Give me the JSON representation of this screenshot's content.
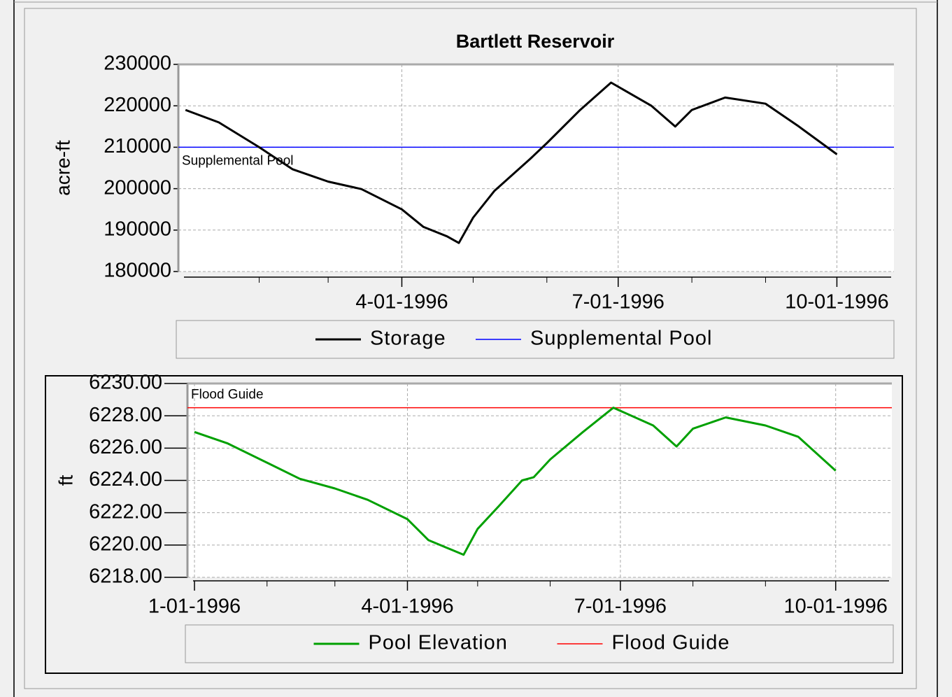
{
  "chart_data": [
    {
      "type": "line",
      "title": "Bartlett Reservoir",
      "ylabel": "acre-ft",
      "x": [
        "1996-01-01",
        "1996-01-15",
        "1996-02-01",
        "1996-02-15",
        "1996-03-01",
        "1996-03-15",
        "1996-04-01",
        "1996-04-10",
        "1996-04-20",
        "1996-04-25",
        "1996-05-01",
        "1996-05-10",
        "1996-05-25",
        "1996-06-01",
        "1996-06-15",
        "1996-06-28",
        "1996-07-15",
        "1996-07-25",
        "1996-08-01",
        "1996-08-15",
        "1996-09-01",
        "1996-09-15",
        "1996-10-01"
      ],
      "series": [
        {
          "name": "Storage",
          "color": "#000000",
          "values": [
            219000,
            216000,
            210000,
            204700,
            201700,
            199900,
            195000,
            190800,
            188500,
            186900,
            193000,
            199500,
            207200,
            211000,
            219000,
            225600,
            220000,
            215000,
            219000,
            222000,
            220500,
            215000,
            208300
          ]
        }
      ],
      "reference_lines": [
        {
          "name": "Supplemental Pool",
          "value": 210000,
          "color": "#0000ff"
        }
      ],
      "xlim": [
        "1995-12-29",
        "1996-10-25"
      ],
      "xticks": [
        {
          "value": "1996-04-01",
          "label": "4-01-1996"
        },
        {
          "value": "1996-07-01",
          "label": "7-01-1996"
        },
        {
          "value": "1996-10-01",
          "label": "10-01-1996"
        }
      ],
      "xminorticks": [
        "1996-02-01",
        "1996-03-01",
        "1996-05-01",
        "1996-06-01",
        "1996-08-01",
        "1996-09-01"
      ],
      "ylim": [
        180000,
        230000
      ],
      "yticks": [
        180000,
        190000,
        200000,
        210000,
        220000,
        230000
      ],
      "grid": true
    },
    {
      "type": "line",
      "ylabel": "ft",
      "x": [
        "1996-01-01",
        "1996-01-15",
        "1996-02-01",
        "1996-02-15",
        "1996-03-01",
        "1996-03-15",
        "1996-04-01",
        "1996-04-10",
        "1996-04-20",
        "1996-04-25",
        "1996-05-01",
        "1996-05-10",
        "1996-05-20",
        "1996-05-25",
        "1996-06-01",
        "1996-06-15",
        "1996-06-28",
        "1996-07-15",
        "1996-07-25",
        "1996-08-01",
        "1996-08-15",
        "1996-09-01",
        "1996-09-15",
        "1996-10-01"
      ],
      "series": [
        {
          "name": "Pool Elevation",
          "color": "#00a000",
          "values": [
            6227.0,
            6226.3,
            6225.1,
            6224.1,
            6223.5,
            6222.8,
            6221.6,
            6220.3,
            6219.7,
            6219.4,
            6221.0,
            6222.4,
            6224.0,
            6224.2,
            6225.3,
            6227.0,
            6228.5,
            6227.4,
            6226.1,
            6227.2,
            6227.9,
            6227.4,
            6226.7,
            6224.6
          ]
        }
      ],
      "reference_lines": [
        {
          "name": "Flood Guide",
          "value": 6228.5,
          "color": "#ff0000"
        }
      ],
      "xlim": [
        "1995-12-29",
        "1996-10-25"
      ],
      "xticks": [
        {
          "value": "1996-01-01",
          "label": "1-01-1996"
        },
        {
          "value": "1996-04-01",
          "label": "4-01-1996"
        },
        {
          "value": "1996-07-01",
          "label": "7-01-1996"
        },
        {
          "value": "1996-10-01",
          "label": "10-01-1996"
        }
      ],
      "xminorticks": [
        "1996-02-01",
        "1996-03-01",
        "1996-05-01",
        "1996-06-01",
        "1996-08-01",
        "1996-09-01"
      ],
      "ylim": [
        6218,
        6230
      ],
      "yticks": [
        {
          "value": 6218,
          "label": "6218.00"
        },
        {
          "value": 6220,
          "label": "6220.00"
        },
        {
          "value": 6222,
          "label": "6222.00"
        },
        {
          "value": 6224,
          "label": "6224.00"
        },
        {
          "value": 6226,
          "label": "6226.00"
        },
        {
          "value": 6228,
          "label": "6228.00"
        },
        {
          "value": 6230,
          "label": "6230.00"
        }
      ],
      "grid": true
    }
  ]
}
